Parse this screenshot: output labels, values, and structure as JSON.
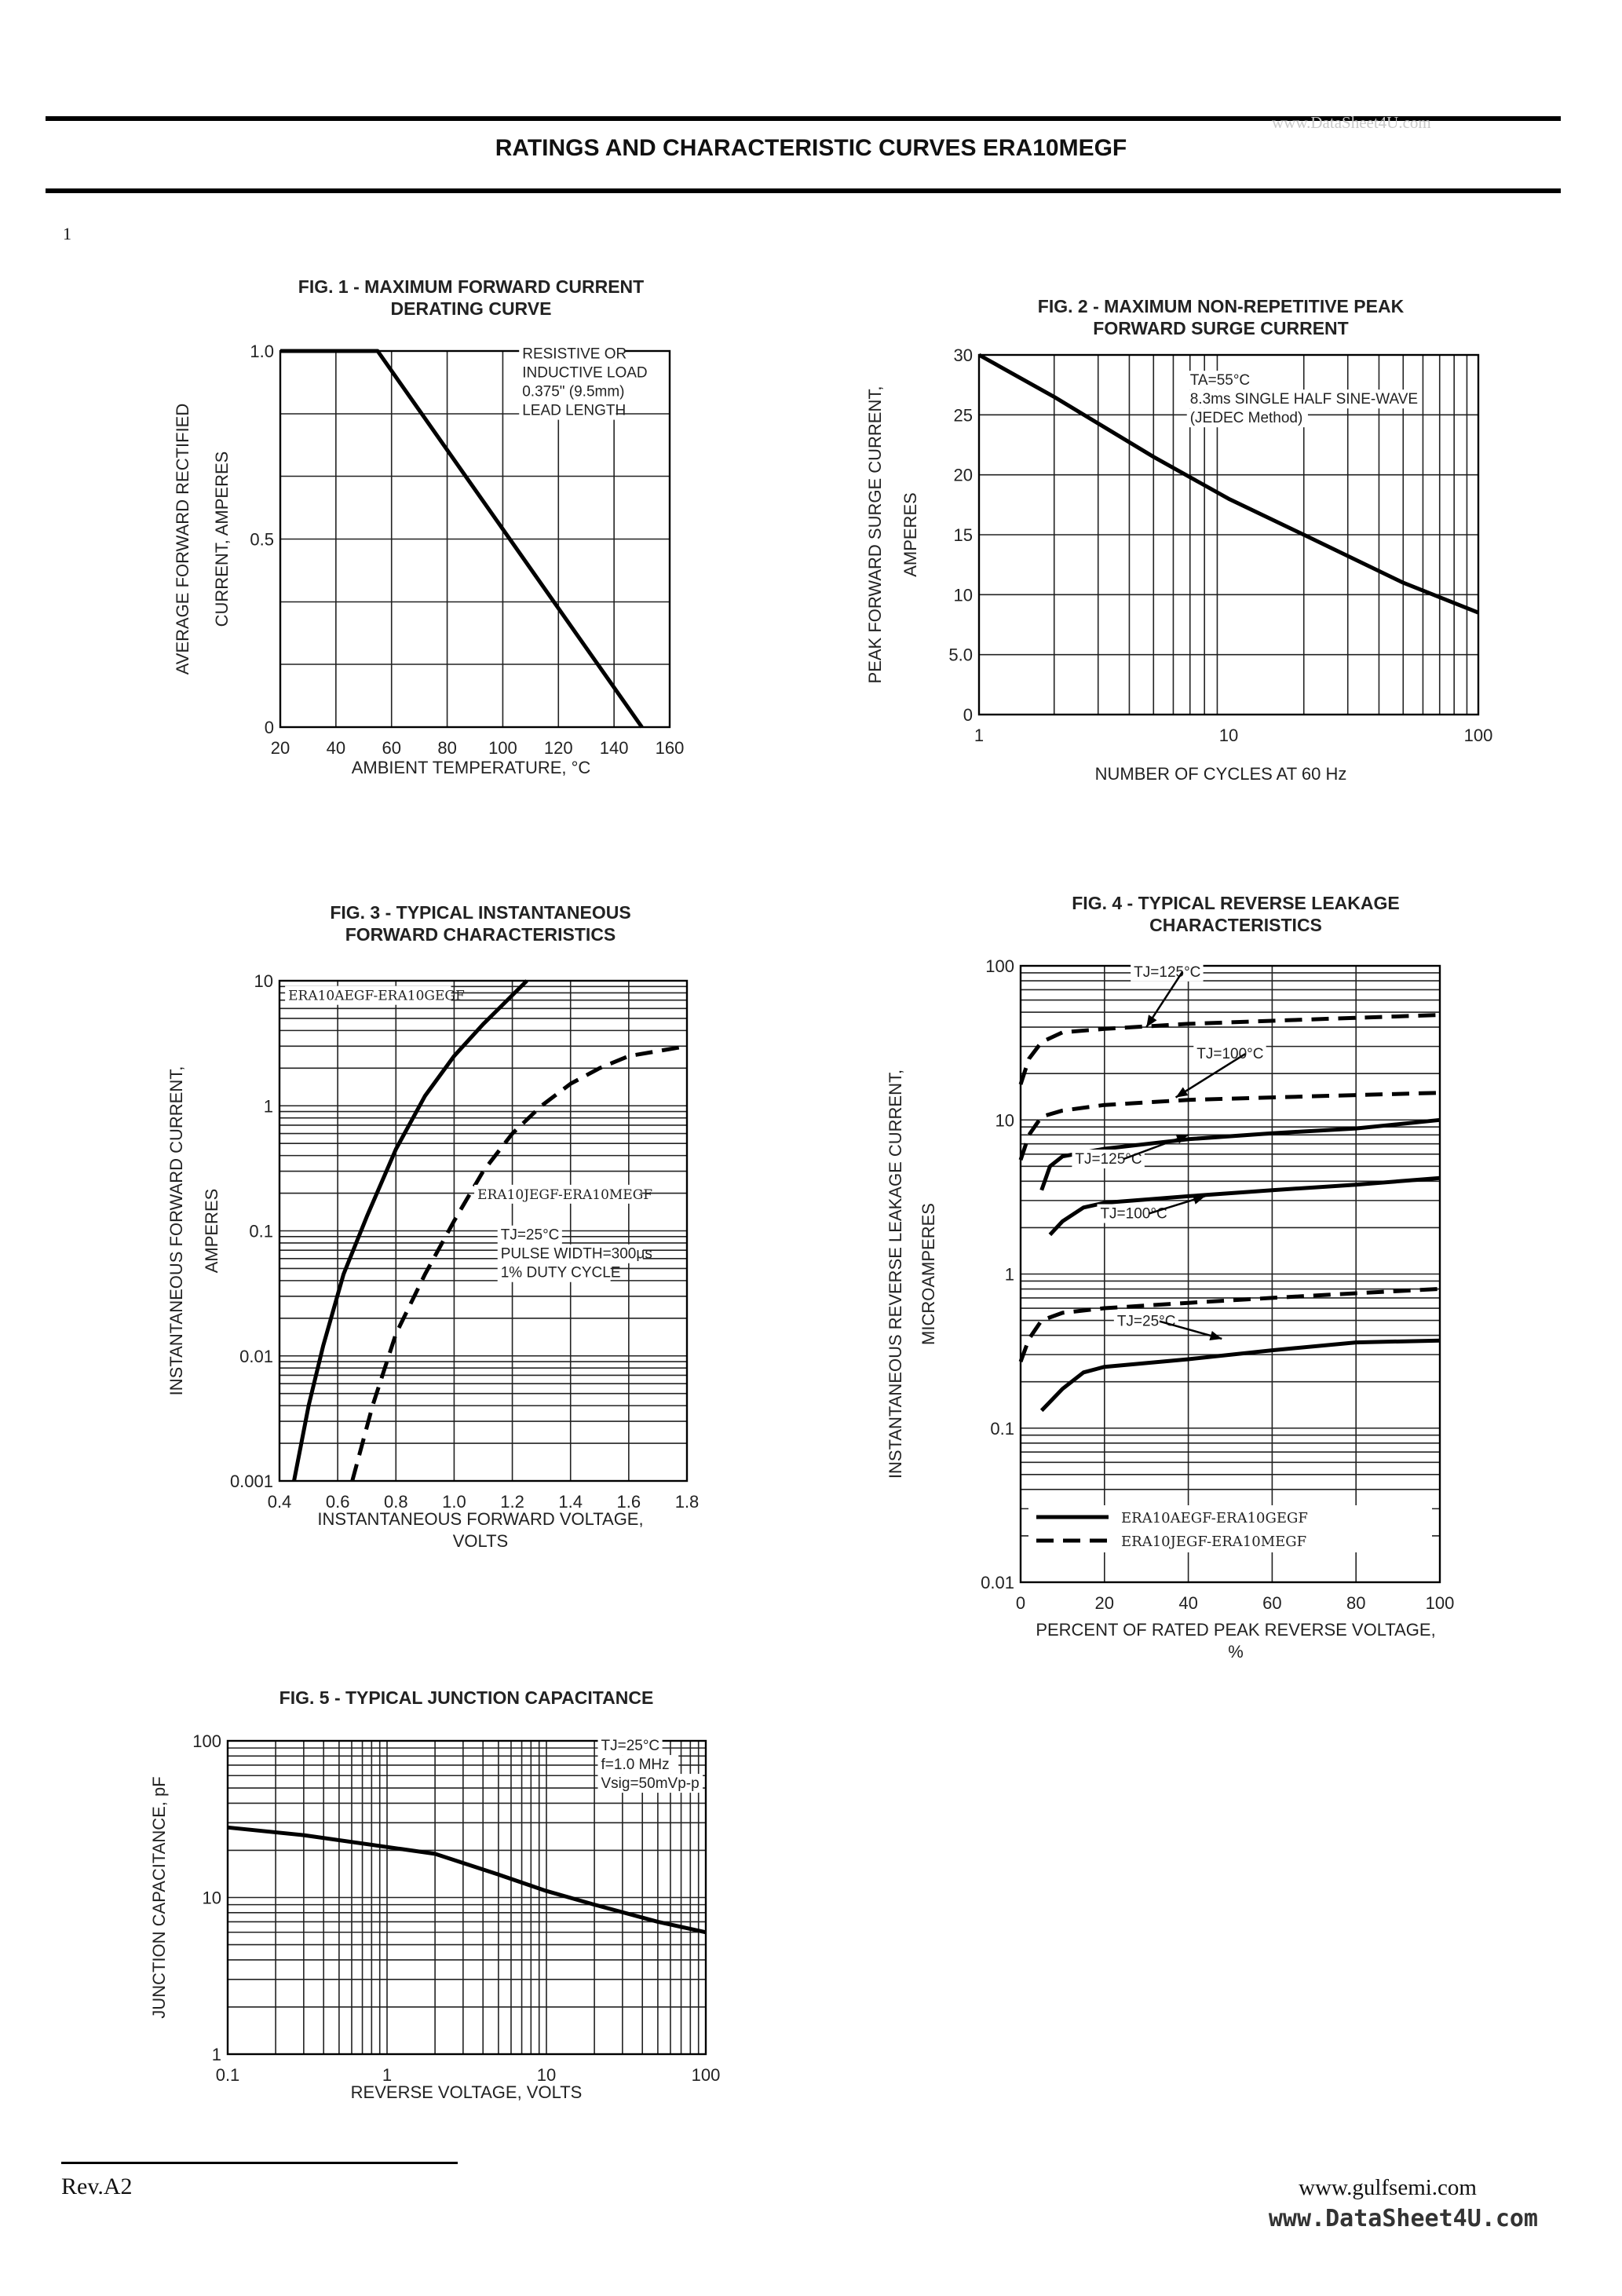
{
  "page": {
    "title": "RATINGS AND CHARACTERISTIC CURVES  ERA10MEGF",
    "watermark_top": "www.DataSheet4U.com",
    "page_number": "1",
    "revision": "Rev.A2",
    "website": "www.gulfsemi.com",
    "watermark_bottom": "www.DataSheet4U.com"
  },
  "chart_data": [
    {
      "id": "fig1",
      "type": "line",
      "title": [
        "FIG. 1 - MAXIMUM FORWARD CURRENT",
        "DERATING CURVE"
      ],
      "xlabel": [
        "AMBIENT TEMPERATURE, °C"
      ],
      "ylabel": [
        "AVERAGE FORWARD RECTIFIED",
        "CURRENT, AMPERES"
      ],
      "xscale": "linear",
      "yscale": "linear",
      "xlim": [
        20,
        160
      ],
      "ylim": [
        0,
        1.0
      ],
      "xticks": [
        {
          "v": 20,
          "t": "20"
        },
        {
          "v": 40,
          "t": "40"
        },
        {
          "v": 60,
          "t": "60"
        },
        {
          "v": 80,
          "t": "80"
        },
        {
          "v": 100,
          "t": "100"
        },
        {
          "v": 120,
          "t": "120"
        },
        {
          "v": 140,
          "t": "140"
        },
        {
          "v": 160,
          "t": "160"
        }
      ],
      "yticks": [
        {
          "v": 0,
          "t": "0"
        },
        {
          "v": 0.5,
          "t": "0.5"
        },
        {
          "v": 1.0,
          "t": "1.0"
        }
      ],
      "vgrid": [
        40,
        60,
        80,
        100,
        120,
        140
      ],
      "hgrid": [
        0.167,
        0.333,
        0.5,
        0.667,
        0.833
      ],
      "annotations": [
        {
          "text": [
            "RESISTIVE OR",
            "INDUCTIVE LOAD",
            "0.375\" (9.5mm)",
            "LEAD LENGTH"
          ],
          "x": 107,
          "y": 0.98
        }
      ],
      "series": [
        {
          "name": "derating",
          "style": "solid",
          "x": [
            20,
            55,
            150
          ],
          "y": [
            1.0,
            1.0,
            0
          ]
        }
      ]
    },
    {
      "id": "fig2",
      "type": "line",
      "title": [
        "FIG. 2 - MAXIMUM NON-REPETITIVE PEAK",
        "FORWARD SURGE CURRENT"
      ],
      "xlabel": [
        "NUMBER OF CYCLES AT 60 Hz"
      ],
      "ylabel": [
        "PEAK FORWARD SURGE CURRENT,",
        "AMPERES"
      ],
      "xscale": "log",
      "yscale": "linear",
      "xlim": [
        1,
        100
      ],
      "ylim": [
        0,
        30
      ],
      "xticks": [
        {
          "v": 1,
          "t": "1"
        },
        {
          "v": 10,
          "t": "10"
        },
        {
          "v": 100,
          "t": "100"
        }
      ],
      "yticks": [
        {
          "v": 0,
          "t": "0"
        },
        {
          "v": 5,
          "t": "5.0"
        },
        {
          "v": 10,
          "t": "10"
        },
        {
          "v": 15,
          "t": "15"
        },
        {
          "v": 20,
          "t": "20"
        },
        {
          "v": 25,
          "t": "25"
        },
        {
          "v": 30,
          "t": "30"
        }
      ],
      "vgrid": [
        2,
        3,
        4,
        5,
        6,
        7,
        8,
        9,
        20,
        30,
        40,
        50,
        60,
        70,
        80,
        90
      ],
      "hgrid": [
        5,
        10,
        15,
        20,
        25
      ],
      "annotations": [
        {
          "text": [
            "TA=55°C",
            "8.3ms SINGLE HALF SINE-WAVE",
            "(JEDEC Method)"
          ],
          "x": 7,
          "y": 27.5
        }
      ],
      "series": [
        {
          "name": "surge",
          "style": "solid",
          "x": [
            1,
            2,
            5,
            10,
            20,
            50,
            100
          ],
          "y": [
            30,
            26.5,
            21.5,
            18,
            15,
            11,
            8.5
          ]
        }
      ]
    },
    {
      "id": "fig3",
      "type": "line",
      "title": [
        "FIG. 3 - TYPICAL INSTANTANEOUS",
        "FORWARD CHARACTERISTICS"
      ],
      "xlabel": [
        "INSTANTANEOUS FORWARD VOLTAGE,",
        "VOLTS"
      ],
      "ylabel": [
        "INSTANTANEOUS FORWARD CURRENT,",
        "AMPERES"
      ],
      "xscale": "linear",
      "yscale": "log",
      "xlim": [
        0.4,
        1.8
      ],
      "ylim": [
        0.001,
        10
      ],
      "xticks": [
        {
          "v": 0.4,
          "t": "0.4"
        },
        {
          "v": 0.6,
          "t": "0.6"
        },
        {
          "v": 0.8,
          "t": "0.8"
        },
        {
          "v": 1.0,
          "t": "1.0"
        },
        {
          "v": 1.2,
          "t": "1.2"
        },
        {
          "v": 1.4,
          "t": "1.4"
        },
        {
          "v": 1.6,
          "t": "1.6"
        },
        {
          "v": 1.8,
          "t": "1.8"
        }
      ],
      "yticks": [
        {
          "v": 0.001,
          "t": "0.001"
        },
        {
          "v": 0.01,
          "t": "0.01"
        },
        {
          "v": 0.1,
          "t": "0.1"
        },
        {
          "v": 1,
          "t": "1"
        },
        {
          "v": 10,
          "t": "10"
        }
      ],
      "vgrid": [
        0.6,
        0.8,
        1.0,
        1.2,
        1.4,
        1.6
      ],
      "hgrid": "log-minor",
      "annotations": [
        {
          "text": [
            "ERA10AEGF-ERA10GEGF"
          ],
          "x": 0.43,
          "y": 7,
          "serif": true
        },
        {
          "text": [
            "ERA10JEGF-ERA10MEGF"
          ],
          "x": 1.08,
          "y": 0.18,
          "serif": true
        },
        {
          "text": [
            "TJ=25°C",
            "PULSE WIDTH=300μs",
            "1% DUTY CYCLE"
          ],
          "x": 1.16,
          "y": 0.085
        }
      ],
      "series": [
        {
          "name": "ERA10AEGF-ERA10GEGF",
          "style": "solid",
          "x": [
            0.45,
            0.5,
            0.55,
            0.62,
            0.7,
            0.8,
            0.9,
            1.0,
            1.1,
            1.25
          ],
          "y": [
            0.001,
            0.004,
            0.012,
            0.045,
            0.13,
            0.45,
            1.2,
            2.5,
            4.5,
            10
          ]
        },
        {
          "name": "ERA10JEGF-ERA10MEGF",
          "style": "dashed",
          "x": [
            0.65,
            0.72,
            0.8,
            0.9,
            1.0,
            1.1,
            1.2,
            1.3,
            1.4,
            1.5,
            1.6,
            1.8
          ],
          "y": [
            0.001,
            0.004,
            0.015,
            0.045,
            0.12,
            0.3,
            0.6,
            1.0,
            1.5,
            2.0,
            2.5,
            3.0
          ]
        }
      ]
    },
    {
      "id": "fig4",
      "type": "line",
      "title": [
        "FIG. 4 - TYPICAL REVERSE LEAKAGE",
        "CHARACTERISTICS"
      ],
      "xlabel": [
        "PERCENT OF RATED PEAK REVERSE VOLTAGE,",
        "%"
      ],
      "ylabel": [
        "INSTANTANEOUS REVERSE LEAKAGE CURRENT,",
        "MICROAMPERES"
      ],
      "xscale": "linear",
      "yscale": "log",
      "xlim": [
        0,
        100
      ],
      "ylim": [
        0.01,
        100
      ],
      "xticks": [
        {
          "v": 0,
          "t": "0"
        },
        {
          "v": 20,
          "t": "20"
        },
        {
          "v": 40,
          "t": "40"
        },
        {
          "v": 60,
          "t": "60"
        },
        {
          "v": 80,
          "t": "80"
        },
        {
          "v": 100,
          "t": "100"
        }
      ],
      "yticks": [
        {
          "v": 0.01,
          "t": "0.01"
        },
        {
          "v": 0.1,
          "t": "0.1"
        },
        {
          "v": 1,
          "t": "1"
        },
        {
          "v": 10,
          "t": "10"
        },
        {
          "v": 100,
          "t": "100"
        }
      ],
      "vgrid": [
        20,
        40,
        60,
        80
      ],
      "hgrid": "log-minor",
      "annotations": [
        {
          "text": [
            "TJ=125°C"
          ],
          "x": 27,
          "y": 85,
          "arrow": [
            30,
            40
          ]
        },
        {
          "text": [
            "TJ=100°C"
          ],
          "x": 42,
          "y": 25,
          "arrow": [
            37,
            14
          ]
        },
        {
          "text": [
            "TJ=125°C"
          ],
          "x": 13,
          "y": 5.2,
          "arrow": [
            40,
            8
          ]
        },
        {
          "text": [
            "TJ=100°C"
          ],
          "x": 19,
          "y": 2.3,
          "arrow": [
            44,
            3.2
          ]
        },
        {
          "text": [
            "TJ=25°C"
          ],
          "x": 23,
          "y": 0.46,
          "arrow": [
            48,
            0.38
          ]
        }
      ],
      "legend": [
        {
          "label": "ERA10AEGF-ERA10GEGF",
          "style": "solid"
        },
        {
          "label": "ERA10JEGF-ERA10MEGF",
          "style": "dashed"
        }
      ],
      "series": [
        {
          "name": "ERA10JEGF-ERA10MEGF TJ=125°C",
          "style": "dashed",
          "x": [
            0,
            2,
            5,
            10,
            20,
            40,
            60,
            80,
            100
          ],
          "y": [
            17,
            25,
            32,
            37,
            39,
            42,
            44,
            46,
            48
          ]
        },
        {
          "name": "ERA10JEGF-ERA10MEGF TJ=100°C",
          "style": "dashed",
          "x": [
            0,
            2,
            5,
            10,
            20,
            40,
            60,
            80,
            100
          ],
          "y": [
            5.5,
            8,
            10.5,
            11.5,
            12.5,
            13.5,
            14,
            14.5,
            15
          ]
        },
        {
          "name": "ERA10AEGF-ERA10GEGF TJ=125°C",
          "style": "solid",
          "x": [
            5,
            7,
            10,
            20,
            40,
            60,
            80,
            100
          ],
          "y": [
            3.5,
            5,
            5.8,
            6.5,
            7.5,
            8.2,
            8.8,
            10
          ]
        },
        {
          "name": "ERA10AEGF-ERA10GEGF TJ=100°C",
          "style": "solid",
          "x": [
            7,
            10,
            15,
            20,
            40,
            60,
            80,
            100
          ],
          "y": [
            1.8,
            2.2,
            2.7,
            2.9,
            3.2,
            3.5,
            3.8,
            4.2
          ]
        },
        {
          "name": "ERA10JEGF-ERA10MEGF TJ=25°C",
          "style": "dashed",
          "x": [
            0,
            2,
            5,
            10,
            20,
            40,
            60,
            80,
            100
          ],
          "y": [
            0.27,
            0.38,
            0.5,
            0.56,
            0.6,
            0.65,
            0.7,
            0.75,
            0.8
          ]
        },
        {
          "name": "ERA10AEGF-ERA10GEGF TJ=25°C",
          "style": "solid",
          "x": [
            5,
            10,
            15,
            20,
            40,
            60,
            80,
            100
          ],
          "y": [
            0.13,
            0.18,
            0.23,
            0.25,
            0.28,
            0.32,
            0.36,
            0.37
          ]
        }
      ]
    },
    {
      "id": "fig5",
      "type": "line",
      "title": [
        "FIG. 5 - TYPICAL JUNCTION CAPACITANCE"
      ],
      "xlabel": [
        "REVERSE VOLTAGE, VOLTS"
      ],
      "ylabel": [
        "JUNCTION CAPACITANCE, pF"
      ],
      "xscale": "log",
      "yscale": "log",
      "xlim": [
        0.1,
        100
      ],
      "ylim": [
        1,
        100
      ],
      "xticks": [
        {
          "v": 0.1,
          "t": "0.1"
        },
        {
          "v": 1,
          "t": "1"
        },
        {
          "v": 10,
          "t": "10"
        },
        {
          "v": 100,
          "t": "100"
        }
      ],
      "yticks": [
        {
          "v": 1,
          "t": "1"
        },
        {
          "v": 10,
          "t": "10"
        },
        {
          "v": 100,
          "t": "100"
        }
      ],
      "vgrid": "log-minor",
      "hgrid": "log-minor",
      "annotations": [
        {
          "text": [
            "TJ=25°C",
            "f=1.0 MHz",
            "Vsig=50mVp-p"
          ],
          "x": 22,
          "y": 87
        }
      ],
      "series": [
        {
          "name": "capacitance",
          "style": "solid",
          "x": [
            0.1,
            0.3,
            1,
            2,
            5,
            10,
            20,
            50,
            100
          ],
          "y": [
            28,
            25,
            21,
            19,
            14,
            11,
            9,
            7,
            6
          ]
        }
      ]
    }
  ]
}
